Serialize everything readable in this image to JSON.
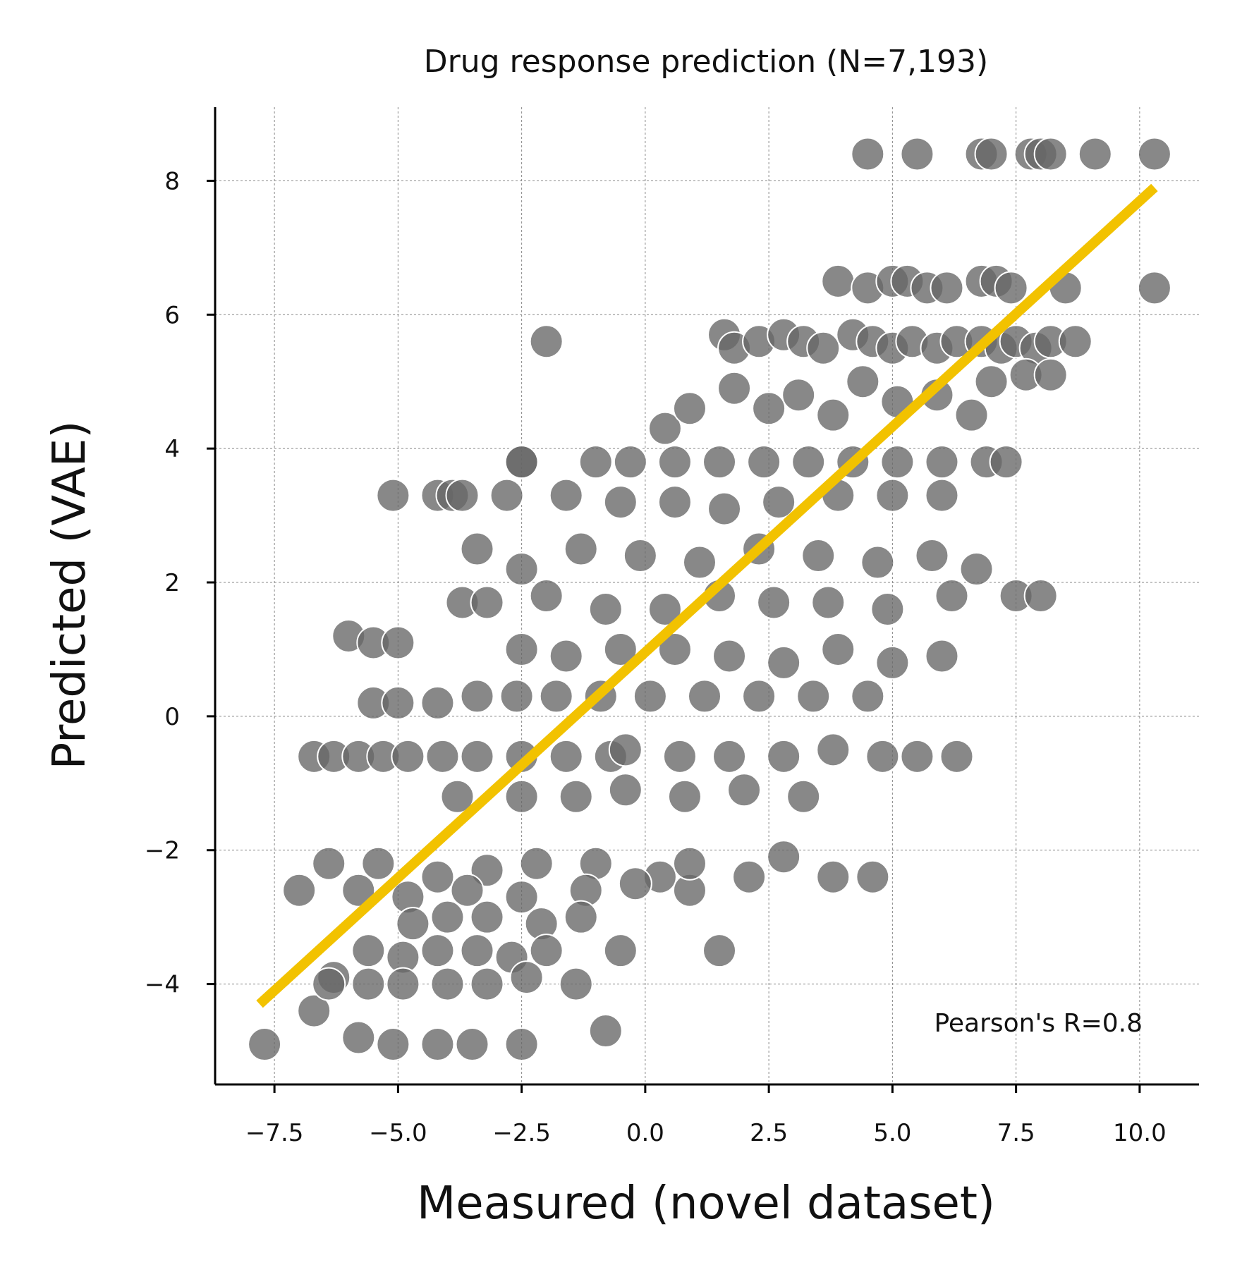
{
  "chart_data": {
    "type": "scatter",
    "title": "Drug response prediction (N=7,193)",
    "xlabel": "Measured (novel dataset)",
    "ylabel": "Predicted (VAE)",
    "xlim": [
      -8.7,
      11.2
    ],
    "ylim": [
      -5.5,
      9.1
    ],
    "xticks": [
      -7.5,
      -5.0,
      -2.5,
      0.0,
      2.5,
      5.0,
      7.5,
      10.0
    ],
    "xtick_labels": [
      "−7.5",
      "−5.0",
      "−2.5",
      "0.0",
      "2.5",
      "5.0",
      "7.5",
      "10.0"
    ],
    "yticks": [
      -4,
      -2,
      0,
      2,
      4,
      6,
      8
    ],
    "ytick_labels": [
      "−4",
      "−2",
      "0",
      "2",
      "4",
      "6",
      "8"
    ],
    "grid": true,
    "annotation": "Pearson's R=0.8",
    "regression_line": {
      "x": [
        -7.8,
        10.3
      ],
      "y": [
        -4.3,
        7.9
      ]
    },
    "colors": {
      "points": "#666666",
      "line": "#f2c200"
    },
    "series": [
      {
        "x": [
          4.5,
          5.5,
          6.8,
          7.0,
          7.8,
          8.0,
          8.2,
          9.1,
          10.3,
          3.9,
          4.5,
          5.0,
          5.3,
          5.7,
          6.1,
          6.8,
          7.1,
          7.4,
          8.5,
          10.3,
          -2.0,
          1.6,
          1.8,
          2.3,
          2.8,
          3.2,
          3.6,
          4.2,
          4.6,
          5.0,
          5.4,
          5.9,
          6.3,
          6.8,
          7.2,
          7.5,
          7.9,
          8.2,
          8.7,
          -2.5,
          0.4,
          0.9,
          1.8,
          2.5,
          3.1,
          3.8,
          4.4,
          5.1,
          5.9,
          6.6,
          7.0,
          7.7,
          8.2,
          -2.5,
          -1.0,
          -0.3,
          0.6,
          1.5,
          2.4,
          3.3,
          4.2,
          5.1,
          6.0,
          6.9,
          7.3,
          -5.1,
          -4.2,
          -3.9,
          -3.7,
          -2.8,
          -1.6,
          -0.5,
          0.6,
          1.6,
          2.7,
          3.9,
          5.0,
          6.0,
          -3.4,
          -2.5,
          -1.3,
          -0.1,
          1.1,
          2.3,
          3.5,
          4.7,
          5.8,
          6.7,
          -3.7,
          -3.2,
          -2.0,
          -0.8,
          0.4,
          1.5,
          2.6,
          3.7,
          4.9,
          6.2,
          7.5,
          8.0,
          -6.0,
          -5.5,
          -5.0,
          -2.5,
          -1.6,
          -0.5,
          0.6,
          1.7,
          2.8,
          3.9,
          5.0,
          6.0,
          -5.5,
          -5.0,
          -4.2,
          -3.4,
          -2.6,
          -1.8,
          -0.9,
          0.1,
          1.2,
          2.3,
          3.4,
          4.5,
          -6.7,
          -6.3,
          -5.8,
          -5.3,
          -4.8,
          -4.1,
          -3.4,
          -2.5,
          -1.6,
          -0.7,
          -0.4,
          0.7,
          1.7,
          2.8,
          3.8,
          4.8,
          5.5,
          6.3,
          -3.8,
          -2.5,
          -1.4,
          -0.4,
          0.8,
          2.0,
          3.2,
          -6.4,
          -5.4,
          -4.2,
          -3.2,
          -2.2,
          -1.0,
          0.3,
          0.9,
          2.1,
          2.8,
          3.8,
          4.6,
          -7.0,
          -5.8,
          -4.8,
          -3.6,
          -2.5,
          -1.2,
          -0.2,
          0.9,
          -4.7,
          -4.0,
          -3.2,
          -2.1,
          -1.3,
          -6.3,
          -5.6,
          -4.9,
          -4.2,
          -3.4,
          -2.7,
          -2.0,
          -0.5,
          1.5,
          -7.7,
          -6.7,
          -5.8,
          -5.1,
          -4.2,
          -3.5,
          -2.5,
          -0.8,
          -6.4,
          -5.6,
          -4.9,
          -4.0,
          -3.2,
          -2.4,
          -1.4
        ],
        "y": [
          8.4,
          8.4,
          8.4,
          8.4,
          8.4,
          8.4,
          8.4,
          8.4,
          8.4,
          6.5,
          6.4,
          6.5,
          6.5,
          6.4,
          6.4,
          6.5,
          6.5,
          6.4,
          6.4,
          6.4,
          5.6,
          5.7,
          5.5,
          5.6,
          5.7,
          5.6,
          5.5,
          5.7,
          5.6,
          5.5,
          5.6,
          5.5,
          5.6,
          5.6,
          5.5,
          5.6,
          5.5,
          5.6,
          5.6,
          3.8,
          4.3,
          4.6,
          4.9,
          4.6,
          4.8,
          4.5,
          5.0,
          4.7,
          4.8,
          4.5,
          5.0,
          5.1,
          5.1,
          3.8,
          3.8,
          3.8,
          3.8,
          3.8,
          3.8,
          3.8,
          3.8,
          3.8,
          3.8,
          3.8,
          3.8,
          3.3,
          3.3,
          3.3,
          3.3,
          3.3,
          3.3,
          3.2,
          3.2,
          3.1,
          3.2,
          3.3,
          3.3,
          3.3,
          2.5,
          2.2,
          2.5,
          2.4,
          2.3,
          2.5,
          2.4,
          2.3,
          2.4,
          2.2,
          1.7,
          1.7,
          1.8,
          1.6,
          1.6,
          1.8,
          1.7,
          1.7,
          1.6,
          1.8,
          1.8,
          1.8,
          1.2,
          1.1,
          1.1,
          1.0,
          0.9,
          1.0,
          1.0,
          0.9,
          0.8,
          1.0,
          0.8,
          0.9,
          0.2,
          0.2,
          0.2,
          0.3,
          0.3,
          0.3,
          0.3,
          0.3,
          0.3,
          0.3,
          0.3,
          0.3,
          -0.6,
          -0.6,
          -0.6,
          -0.6,
          -0.6,
          -0.6,
          -0.6,
          -0.6,
          -0.6,
          -0.6,
          -0.5,
          -0.6,
          -0.6,
          -0.6,
          -0.5,
          -0.6,
          -0.6,
          -0.6,
          -1.2,
          -1.2,
          -1.2,
          -1.1,
          -1.2,
          -1.1,
          -1.2,
          -2.2,
          -2.2,
          -2.4,
          -2.3,
          -2.2,
          -2.2,
          -2.4,
          -2.6,
          -2.4,
          -2.1,
          -2.4,
          -2.4,
          -2.6,
          -2.6,
          -2.7,
          -2.6,
          -2.7,
          -2.6,
          -2.5,
          -2.2,
          -3.1,
          -3.0,
          -3.0,
          -3.1,
          -3.0,
          -3.9,
          -3.5,
          -3.6,
          -3.5,
          -3.5,
          -3.6,
          -3.5,
          -3.5,
          -3.5,
          -4.9,
          -4.4,
          -4.8,
          -4.9,
          -4.9,
          -4.9,
          -4.9,
          -4.7,
          -4.0,
          -4.0,
          -4.0,
          -4.0,
          -4.0,
          -3.9,
          -4.0
        ]
      }
    ]
  }
}
